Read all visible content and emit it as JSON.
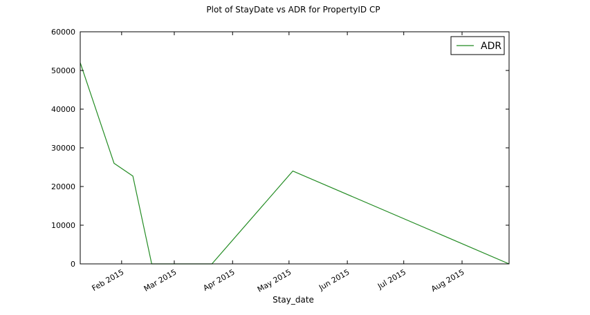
{
  "chart_data": {
    "type": "line",
    "title": "Plot of StayDate vs ADR for PropertyID CP",
    "xlabel": "Stay_date",
    "ylabel": "",
    "xlim": [
      "2015-01-10",
      "2015-08-26"
    ],
    "ylim": [
      0,
      60000
    ],
    "y_ticks": [
      0,
      10000,
      20000,
      30000,
      40000,
      50000,
      60000
    ],
    "x_ticks": [
      {
        "date": "2015-02-01",
        "label": "Feb 2015"
      },
      {
        "date": "2015-03-01",
        "label": "Mar 2015"
      },
      {
        "date": "2015-04-01",
        "label": "Apr 2015"
      },
      {
        "date": "2015-05-01",
        "label": "May 2015"
      },
      {
        "date": "2015-06-01",
        "label": "Jun 2015"
      },
      {
        "date": "2015-07-01",
        "label": "Jul 2015"
      },
      {
        "date": "2015-08-01",
        "label": "Aug 2015"
      }
    ],
    "grid": false,
    "legend_position": "top-right",
    "series": [
      {
        "name": "ADR",
        "color": "#228b22",
        "x": [
          "2015-01-10",
          "2015-01-28",
          "2015-02-07",
          "2015-02-17",
          "2015-03-21",
          "2015-05-03",
          "2015-08-26"
        ],
        "y": [
          52000,
          26000,
          22700,
          0,
          0,
          24000,
          0
        ]
      }
    ]
  }
}
